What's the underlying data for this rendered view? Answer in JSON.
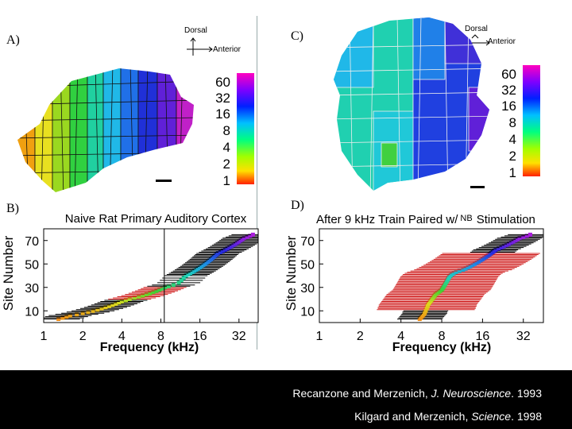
{
  "panels": {
    "a": {
      "label": "A)",
      "dorsal": "Dorsal",
      "anterior": "Anterior"
    },
    "b": {
      "label": "B)"
    },
    "c": {
      "label": "C)",
      "dorsal": "Dorsal",
      "anterior": "Anterior"
    },
    "d": {
      "label": "D)"
    }
  },
  "colorbar": {
    "ticks": [
      "60",
      "32",
      "16",
      "8",
      "4",
      "2",
      "1"
    ]
  },
  "citations": {
    "line1": {
      "authors": "Recanzone and Merzenich, ",
      "journal": "J. Neuroscience",
      "year": ". 1993"
    },
    "line2": {
      "authors": "Kilgard and Merzenich, ",
      "journal": "Science",
      "year": ". 1998"
    }
  },
  "chart_data": [
    {
      "type": "scatter",
      "panel": "B",
      "title": "Naive Rat Primary Auditory Cortex",
      "xlabel": "Frequency (kHz)",
      "ylabel": "Site Number",
      "x_scale": "log2",
      "xticks": [
        "1",
        "2",
        "4",
        "8",
        "16",
        "32"
      ],
      "yticks": [
        "10",
        "30",
        "50",
        "70"
      ],
      "xlim": [
        1,
        45
      ],
      "ylim": [
        0,
        80
      ],
      "reference_x": 8.5,
      "points": [
        [
          1.3,
          3
        ],
        [
          1.4,
          4
        ],
        [
          1.5,
          5
        ],
        [
          1.6,
          6
        ],
        [
          1.8,
          7
        ],
        [
          2.0,
          8
        ],
        [
          2.2,
          9
        ],
        [
          2.4,
          10
        ],
        [
          2.6,
          11
        ],
        [
          2.8,
          12
        ],
        [
          3.0,
          13
        ],
        [
          3.2,
          14
        ],
        [
          3.4,
          15
        ],
        [
          3.6,
          16
        ],
        [
          3.8,
          17
        ],
        [
          4.0,
          18
        ],
        [
          4.3,
          19
        ],
        [
          4.6,
          20
        ],
        [
          5.0,
          21
        ],
        [
          5.4,
          22
        ],
        [
          5.8,
          23
        ],
        [
          6.2,
          24
        ],
        [
          6.6,
          25
        ],
        [
          7.0,
          26
        ],
        [
          7.4,
          27
        ],
        [
          7.8,
          28
        ],
        [
          8.2,
          29
        ],
        [
          8.6,
          30
        ],
        [
          9.2,
          31
        ],
        [
          10,
          32
        ],
        [
          11,
          34
        ],
        [
          11.5,
          36
        ],
        [
          12,
          38
        ],
        [
          12.5,
          40
        ],
        [
          13,
          41
        ],
        [
          13.5,
          42
        ],
        [
          14,
          43
        ],
        [
          14.5,
          44
        ],
        [
          15,
          45
        ],
        [
          15.5,
          46
        ],
        [
          16,
          47
        ],
        [
          16.5,
          48
        ],
        [
          17,
          49
        ],
        [
          17.5,
          50
        ],
        [
          18,
          51
        ],
        [
          18.5,
          52
        ],
        [
          19,
          53
        ],
        [
          19.5,
          54
        ],
        [
          20,
          55
        ],
        [
          20.5,
          56
        ],
        [
          21,
          57
        ],
        [
          21.5,
          58
        ],
        [
          22,
          59
        ],
        [
          23,
          60
        ],
        [
          24,
          61
        ],
        [
          25,
          62
        ],
        [
          26,
          63
        ],
        [
          27,
          64
        ],
        [
          28,
          65
        ],
        [
          29,
          66
        ],
        [
          30,
          67
        ],
        [
          31,
          68
        ],
        [
          32,
          69
        ],
        [
          33,
          70
        ],
        [
          34,
          71
        ],
        [
          35,
          72
        ],
        [
          37,
          73
        ],
        [
          39,
          74
        ],
        [
          41,
          75
        ]
      ]
    },
    {
      "type": "scatter",
      "panel": "D",
      "title_parts": [
        "After 9 kHz Train Paired w/",
        "NB",
        "Stimulation"
      ],
      "xlabel": "Frequency (kHz)",
      "ylabel": "Site Number",
      "x_scale": "log2",
      "xticks": [
        "1",
        "2",
        "4",
        "8",
        "16",
        "32"
      ],
      "yticks": [
        "10",
        "30",
        "50",
        "70"
      ],
      "xlim": [
        1,
        45
      ],
      "ylim": [
        0,
        80
      ],
      "points": [
        [
          5.5,
          3
        ],
        [
          5.6,
          4
        ],
        [
          5.7,
          5
        ],
        [
          5.8,
          6
        ],
        [
          5.9,
          7
        ],
        [
          6.0,
          8
        ],
        [
          6.0,
          9
        ],
        [
          6.1,
          10
        ],
        [
          6.1,
          11
        ],
        [
          6.2,
          12
        ],
        [
          6.2,
          13
        ],
        [
          6.3,
          14
        ],
        [
          6.3,
          15
        ],
        [
          6.4,
          16
        ],
        [
          6.5,
          17
        ],
        [
          6.6,
          18
        ],
        [
          6.7,
          19
        ],
        [
          6.8,
          20
        ],
        [
          6.9,
          21
        ],
        [
          7.0,
          22
        ],
        [
          7.1,
          23
        ],
        [
          7.2,
          24
        ],
        [
          7.4,
          25
        ],
        [
          7.6,
          26
        ],
        [
          7.8,
          27
        ],
        [
          8.0,
          28
        ],
        [
          8.1,
          29
        ],
        [
          8.2,
          30
        ],
        [
          8.3,
          31
        ],
        [
          8.4,
          32
        ],
        [
          8.5,
          33
        ],
        [
          8.6,
          34
        ],
        [
          8.7,
          35
        ],
        [
          8.8,
          36
        ],
        [
          8.9,
          37
        ],
        [
          9.0,
          38
        ],
        [
          9.1,
          39
        ],
        [
          9.3,
          40
        ],
        [
          9.5,
          41
        ],
        [
          9.8,
          42
        ],
        [
          10.2,
          43
        ],
        [
          10.8,
          44
        ],
        [
          11.5,
          45
        ],
        [
          12,
          46
        ],
        [
          12.5,
          47
        ],
        [
          13,
          48
        ],
        [
          13.5,
          49
        ],
        [
          14,
          50
        ],
        [
          14.5,
          51
        ],
        [
          15,
          52
        ],
        [
          15.5,
          53
        ],
        [
          16,
          54
        ],
        [
          16.5,
          55
        ],
        [
          17,
          56
        ],
        [
          17.5,
          57
        ],
        [
          18,
          58
        ],
        [
          18.5,
          59
        ],
        [
          19,
          60
        ],
        [
          19.5,
          61
        ],
        [
          20,
          62
        ],
        [
          21,
          63
        ],
        [
          22,
          64
        ],
        [
          23,
          65
        ],
        [
          24,
          66
        ],
        [
          25,
          67
        ],
        [
          26,
          68
        ],
        [
          27,
          69
        ],
        [
          28,
          70
        ],
        [
          29,
          71
        ],
        [
          30,
          72
        ],
        [
          32,
          73
        ],
        [
          34,
          74
        ],
        [
          36,
          75
        ]
      ]
    }
  ]
}
